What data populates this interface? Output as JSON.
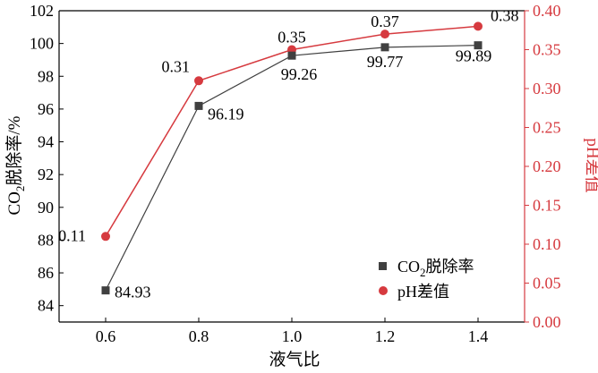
{
  "chart_data": {
    "type": "line",
    "xlabel": "液气比",
    "ylabel_left": {
      "main": "CO",
      "sub": "2",
      "rest": "脱除率/%"
    },
    "ylabel_right": "pH差值",
    "x": [
      0.6,
      0.8,
      1.0,
      1.2,
      1.4
    ],
    "x_tick_labels": [
      "0.6",
      "0.8",
      "1.0",
      "1.2",
      "1.4"
    ],
    "xlim": [
      0.5,
      1.5
    ],
    "ylim_left": [
      83,
      102
    ],
    "ylim_right": [
      0,
      0.4
    ],
    "left_ticks": [
      "84",
      "86",
      "88",
      "90",
      "92",
      "94",
      "96",
      "98",
      "100",
      "102"
    ],
    "right_ticks": [
      "0.00",
      "0.05",
      "0.10",
      "0.15",
      "0.20",
      "0.25",
      "0.30",
      "0.35",
      "0.40"
    ],
    "grid": false,
    "legend_position": "bottom-right",
    "series": [
      {
        "name_parts": {
          "main": "CO",
          "sub": "2",
          "rest": "脱除率"
        },
        "axis": "left",
        "marker": "square",
        "color": "#404040",
        "values": [
          84.93,
          96.19,
          99.26,
          99.77,
          99.89
        ],
        "labels": [
          "84.93",
          "96.19",
          "99.26",
          "99.77",
          "99.89"
        ]
      },
      {
        "name": "pH差值",
        "axis": "right",
        "marker": "circle",
        "color": "#d63a3f",
        "values": [
          0.11,
          0.31,
          0.35,
          0.37,
          0.38
        ],
        "labels": [
          "0.11",
          "0.31",
          "0.35",
          "0.37",
          "0.38"
        ]
      }
    ]
  }
}
